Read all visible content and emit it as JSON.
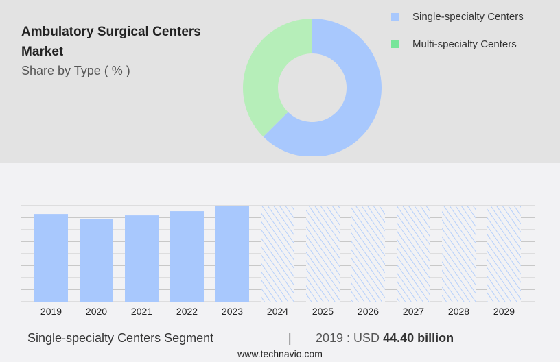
{
  "header": {
    "title": "Ambulatory Surgical Centers Market",
    "subtitle": "Share by Type ( % )"
  },
  "chart_data": [
    {
      "type": "pie",
      "variant": "donut",
      "legend_position": "top-right",
      "series": [
        {
          "name": "Single-specialty Centers",
          "value": 62.5,
          "color": "#a8c8fd"
        },
        {
          "name": "Multi-specialty Centers",
          "value": 37.5,
          "color": "#b6eeb9",
          "legend_color": "#77e59a"
        }
      ]
    },
    {
      "type": "bar",
      "categories": [
        "2019",
        "2020",
        "2021",
        "2022",
        "2023",
        "2024",
        "2025",
        "2026",
        "2027",
        "2028",
        "2029"
      ],
      "values": [
        44.4,
        42.0,
        43.7,
        45.8,
        48.6,
        null,
        null,
        null,
        null,
        null,
        null
      ],
      "forecast_categories": [
        "2024",
        "2025",
        "2026",
        "2027",
        "2028",
        "2029"
      ],
      "ylim": [
        0,
        48.6
      ],
      "grid": true,
      "color": "#a8c8fd"
    }
  ],
  "footer": {
    "segment": "Single-specialty Centers Segment",
    "separator": "|",
    "year_label": "2019 : USD",
    "value": "44.40 billion",
    "url": "www.technavio.com"
  }
}
